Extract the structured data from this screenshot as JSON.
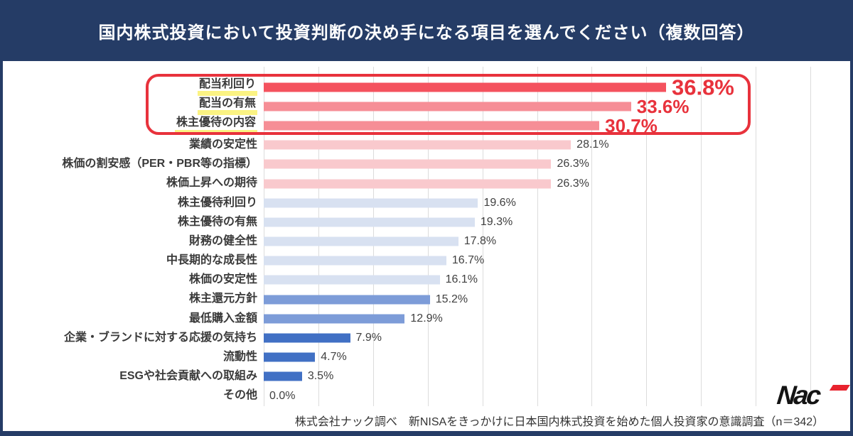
{
  "header": {
    "title": "国内株式投資において投資判断の決め手になる項目を選んでください（複数回答）"
  },
  "chart_data": {
    "type": "bar",
    "orientation": "horizontal",
    "title": "国内株式投資において投資判断の決め手になる項目を選んでください（複数回答）",
    "xlabel": "",
    "ylabel": "",
    "unit": "%",
    "xlim": [
      0,
      50
    ],
    "gridline_step": 5,
    "grid": true,
    "legend": "none",
    "categories": [
      "配当利回り",
      "配当の有無",
      "株主優待の内容",
      "業績の安定性",
      "株価の割安感（PER・PBR等の指標）",
      "株価上昇への期待",
      "株主優待利回り",
      "株主優待の有無",
      "財務の健全性",
      "中長期的な成長性",
      "株価の安定性",
      "株主還元方針",
      "最低購入金額",
      "企業・ブランドに対する応援の気持ち",
      "流動性",
      "ESGや社会貢献への取組み",
      "その他"
    ],
    "values": [
      36.8,
      33.6,
      30.7,
      28.1,
      26.3,
      26.3,
      19.6,
      19.3,
      17.8,
      16.7,
      16.1,
      15.2,
      12.9,
      7.9,
      4.7,
      3.5,
      0.0
    ],
    "annotations": {
      "top3_outlined_in_red_box": true,
      "top3_labels_yellow_highlighted": true,
      "top3_value_labels_red_bold": true
    },
    "rows": [
      {
        "label": "配当利回り",
        "value": 36.8,
        "display": "36.8%",
        "color": "#f4525e",
        "marked": true,
        "value_class": "v-xl"
      },
      {
        "label": "配当の有無",
        "value": 33.6,
        "display": "33.6%",
        "color": "#f68e96",
        "marked": true,
        "value_class": "v-lg"
      },
      {
        "label": "株主優待の内容",
        "value": 30.7,
        "display": "30.7%",
        "color": "#f68e96",
        "marked": true,
        "value_class": "v-lg"
      },
      {
        "label": "業績の安定性",
        "value": 28.1,
        "display": "28.1%",
        "color": "#f9c9cd",
        "marked": false,
        "value_class": "v"
      },
      {
        "label": "株価の割安感（PER・PBR等の指標）",
        "value": 26.3,
        "display": "26.3%",
        "color": "#f9c9cd",
        "marked": false,
        "value_class": "v"
      },
      {
        "label": "株価上昇への期待",
        "value": 26.3,
        "display": "26.3%",
        "color": "#f9c9cd",
        "marked": false,
        "value_class": "v"
      },
      {
        "label": "株主優待利回り",
        "value": 19.6,
        "display": "19.6%",
        "color": "#d8e1f1",
        "marked": false,
        "value_class": "v"
      },
      {
        "label": "株主優待の有無",
        "value": 19.3,
        "display": "19.3%",
        "color": "#d8e1f1",
        "marked": false,
        "value_class": "v"
      },
      {
        "label": "財務の健全性",
        "value": 17.8,
        "display": "17.8%",
        "color": "#d8e1f1",
        "marked": false,
        "value_class": "v"
      },
      {
        "label": "中長期的な成長性",
        "value": 16.7,
        "display": "16.7%",
        "color": "#d8e1f1",
        "marked": false,
        "value_class": "v"
      },
      {
        "label": "株価の安定性",
        "value": 16.1,
        "display": "16.1%",
        "color": "#d8e1f1",
        "marked": false,
        "value_class": "v"
      },
      {
        "label": "株主還元方針",
        "value": 15.2,
        "display": "15.2%",
        "color": "#7d9cd8",
        "marked": false,
        "value_class": "v"
      },
      {
        "label": "最低購入金額",
        "value": 12.9,
        "display": "12.9%",
        "color": "#7d9cd8",
        "marked": false,
        "value_class": "v"
      },
      {
        "label": "企業・ブランドに対する応援の気持ち",
        "value": 7.9,
        "display": "7.9%",
        "color": "#4170c4",
        "marked": false,
        "value_class": "v"
      },
      {
        "label": "流動性",
        "value": 4.7,
        "display": "4.7%",
        "color": "#4170c4",
        "marked": false,
        "value_class": "v"
      },
      {
        "label": "ESGや社会貢献への取組み",
        "value": 3.5,
        "display": "3.5%",
        "color": "#4170c4",
        "marked": false,
        "value_class": "v"
      },
      {
        "label": "その他",
        "value": 0.0,
        "display": "0.0%",
        "color": null,
        "marked": false,
        "value_class": "v"
      }
    ]
  },
  "footer": {
    "source": "株式会社ナック調べ　新NISAをきっかけに日本国内株式投資を始めた個人投資家の意識調査（n＝342）",
    "logo_text": "Nac"
  },
  "colors": {
    "header_bg": "#253c66",
    "frame_border": "#253c66",
    "highlight_box": "#e8323c",
    "accent_value_text": "#e8323c",
    "label_marker_yellow": "#fbf383",
    "gridline": "#dcdcdc",
    "logo_accent_red": "#e8232e"
  }
}
